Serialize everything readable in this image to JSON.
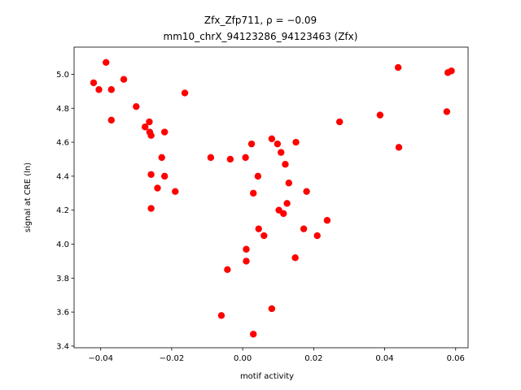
{
  "chart_data": {
    "type": "scatter",
    "title_line1": "Zfx_Zfp711, ρ = −0.09",
    "title_line2": "mm10_chrX_94123286_94123463 (Zfx)",
    "xlabel": "motif activity",
    "ylabel": "signal at CRE (ln)",
    "xlim": [
      -0.0475,
      0.0635
    ],
    "ylim": [
      3.39,
      5.16
    ],
    "xticks": [
      -0.04,
      -0.02,
      0.0,
      0.02,
      0.04,
      0.06
    ],
    "xtick_labels": [
      "−0.04",
      "−0.02",
      "0.00",
      "0.02",
      "0.04",
      "0.06"
    ],
    "yticks": [
      3.4,
      3.6,
      3.8,
      4.0,
      4.2,
      4.4,
      4.6,
      4.8,
      5.0
    ],
    "ytick_labels": [
      "3.4",
      "3.6",
      "3.8",
      "4.0",
      "4.2",
      "4.4",
      "4.6",
      "4.8",
      "5.0"
    ],
    "grid": false,
    "marker_color": "#ff0000",
    "points": [
      {
        "x": -0.042,
        "y": 4.95
      },
      {
        "x": -0.0405,
        "y": 4.91
      },
      {
        "x": -0.0385,
        "y": 5.07
      },
      {
        "x": -0.037,
        "y": 4.91
      },
      {
        "x": -0.037,
        "y": 4.73
      },
      {
        "x": -0.0335,
        "y": 4.97
      },
      {
        "x": -0.03,
        "y": 4.81
      },
      {
        "x": -0.0275,
        "y": 4.69
      },
      {
        "x": -0.0263,
        "y": 4.72
      },
      {
        "x": -0.0262,
        "y": 4.66
      },
      {
        "x": -0.0258,
        "y": 4.64
      },
      {
        "x": -0.0258,
        "y": 4.41
      },
      {
        "x": -0.0258,
        "y": 4.21
      },
      {
        "x": -0.024,
        "y": 4.33
      },
      {
        "x": -0.0228,
        "y": 4.51
      },
      {
        "x": -0.022,
        "y": 4.66
      },
      {
        "x": -0.022,
        "y": 4.4
      },
      {
        "x": -0.019,
        "y": 4.31
      },
      {
        "x": -0.0163,
        "y": 4.89
      },
      {
        "x": -0.009,
        "y": 4.51
      },
      {
        "x": -0.006,
        "y": 3.58
      },
      {
        "x": -0.0043,
        "y": 3.85
      },
      {
        "x": -0.0035,
        "y": 4.5
      },
      {
        "x": 0.0008,
        "y": 4.51
      },
      {
        "x": 0.001,
        "y": 3.97
      },
      {
        "x": 0.001,
        "y": 3.9
      },
      {
        "x": 0.0025,
        "y": 4.59
      },
      {
        "x": 0.003,
        "y": 4.3
      },
      {
        "x": 0.003,
        "y": 3.47
      },
      {
        "x": 0.0043,
        "y": 4.4
      },
      {
        "x": 0.0045,
        "y": 4.09
      },
      {
        "x": 0.006,
        "y": 4.05
      },
      {
        "x": 0.0082,
        "y": 4.62
      },
      {
        "x": 0.0082,
        "y": 3.62
      },
      {
        "x": 0.0098,
        "y": 4.59
      },
      {
        "x": 0.0102,
        "y": 4.2
      },
      {
        "x": 0.0108,
        "y": 4.54
      },
      {
        "x": 0.0115,
        "y": 4.18
      },
      {
        "x": 0.012,
        "y": 4.47
      },
      {
        "x": 0.0125,
        "y": 4.24
      },
      {
        "x": 0.013,
        "y": 4.36
      },
      {
        "x": 0.0148,
        "y": 3.92
      },
      {
        "x": 0.015,
        "y": 4.6
      },
      {
        "x": 0.0172,
        "y": 4.09
      },
      {
        "x": 0.018,
        "y": 4.31
      },
      {
        "x": 0.021,
        "y": 4.05
      },
      {
        "x": 0.0238,
        "y": 4.14
      },
      {
        "x": 0.0273,
        "y": 4.72
      },
      {
        "x": 0.0387,
        "y": 4.76
      },
      {
        "x": 0.0438,
        "y": 5.04
      },
      {
        "x": 0.044,
        "y": 4.57
      },
      {
        "x": 0.0575,
        "y": 4.78
      },
      {
        "x": 0.0578,
        "y": 5.01
      },
      {
        "x": 0.0588,
        "y": 5.02
      }
    ]
  }
}
